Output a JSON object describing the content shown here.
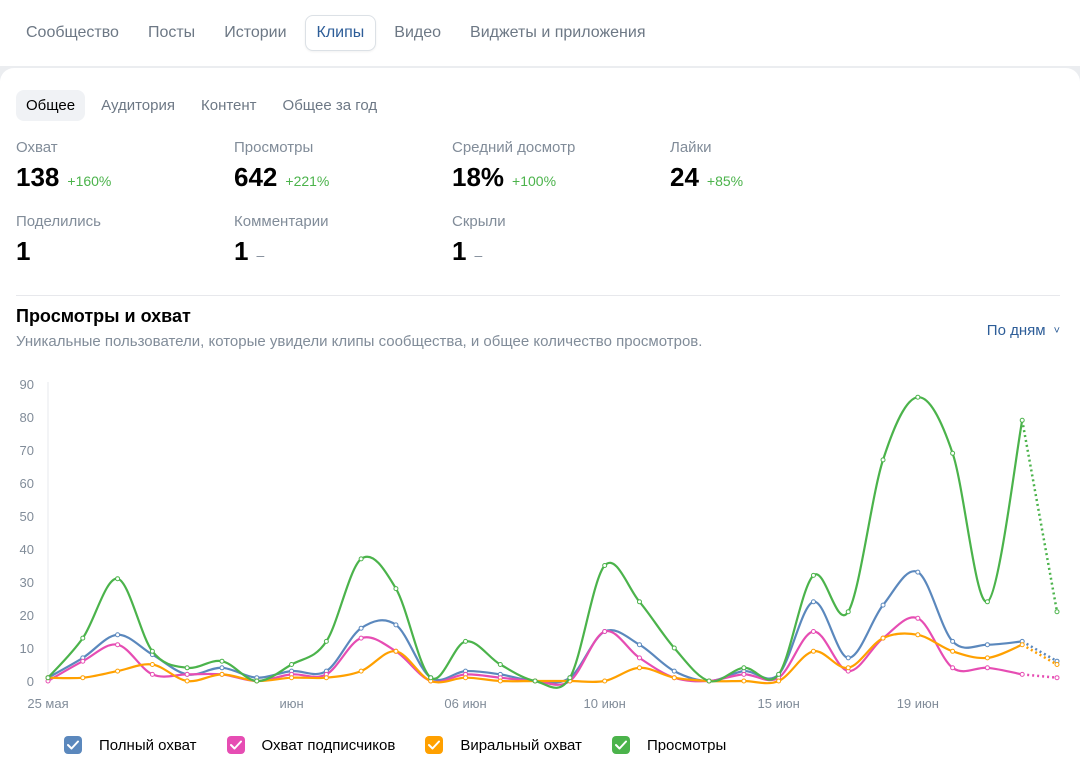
{
  "top_tabs": [
    {
      "label": "Сообщество",
      "active": false
    },
    {
      "label": "Посты",
      "active": false
    },
    {
      "label": "Истории",
      "active": false
    },
    {
      "label": "Клипы",
      "active": true
    },
    {
      "label": "Видео",
      "active": false
    },
    {
      "label": "Виджеты и приложения",
      "active": false
    }
  ],
  "sub_tabs": [
    {
      "label": "Общее",
      "active": true
    },
    {
      "label": "Аудитория",
      "active": false
    },
    {
      "label": "Контент",
      "active": false
    },
    {
      "label": "Общее за год",
      "active": false
    }
  ],
  "metrics": [
    {
      "label": "Охват",
      "value": "138",
      "change": "+160%"
    },
    {
      "label": "Просмотры",
      "value": "642",
      "change": "+221%"
    },
    {
      "label": "Средний досмотр",
      "value": "18%",
      "change": "+100%"
    },
    {
      "label": "Лайки",
      "value": "24",
      "change": "+85%"
    },
    {
      "label": "Поделились",
      "value": "1",
      "change": ""
    },
    {
      "label": "Комментарии",
      "value": "1",
      "change": "–"
    },
    {
      "label": "Скрыли",
      "value": "1",
      "change": "–"
    }
  ],
  "chart_section": {
    "title": "Просмотры и охват",
    "subtitle": "Уникальные пользователи, которые увидели клипы сообщества, и общее количество просмотров.",
    "period_label": "По дням"
  },
  "colors": {
    "full_reach": "#5b88bd",
    "subscriber_reach": "#e64db3",
    "viral_reach": "#ffa000",
    "views": "#4bb34b",
    "accent": "#2d5d98",
    "positive": "#4bb34b"
  },
  "chart_data": {
    "type": "line",
    "x": [
      "25 мая",
      "26 мая",
      "27 мая",
      "28 мая",
      "29 мая",
      "30 мая",
      "31 мая",
      "1 июн",
      "2 июн",
      "3 июн",
      "4 июн",
      "5 июн",
      "6 июн",
      "7 июн",
      "8 июн",
      "9 июн",
      "10 июн",
      "11 июн",
      "12 июн",
      "13 июн",
      "14 июн",
      "15 июн",
      "16 июн",
      "17 июн",
      "18 июн",
      "19 июн",
      "20 июн",
      "21 июн",
      "22 июн",
      "23 июн"
    ],
    "x_tick_labels": [
      {
        "label": "25 мая",
        "x": "25 мая"
      },
      {
        "label": "июн",
        "x": "1 июн"
      },
      {
        "label": "06 июн",
        "x": "6 июн"
      },
      {
        "label": "10 июн",
        "x": "10 июн"
      },
      {
        "label": "15 июн",
        "x": "15 июн"
      },
      {
        "label": "19 июн",
        "x": "19 июн"
      }
    ],
    "ylim": [
      0,
      90
    ],
    "yticks": [
      0,
      10,
      20,
      30,
      40,
      50,
      60,
      70,
      80,
      90
    ],
    "grid": false,
    "legend_position": "bottom-left",
    "dotted_last_segment": true,
    "series": [
      {
        "name": "Полный охват",
        "color_key": "full_reach",
        "values": [
          1,
          7,
          14,
          8,
          2,
          4,
          1,
          3,
          3,
          16,
          17,
          1,
          3,
          2,
          0,
          1,
          15,
          11,
          3,
          0,
          3,
          2,
          24,
          7,
          23,
          33,
          12,
          11,
          12,
          6
        ]
      },
      {
        "name": "Охват подписчиков",
        "color_key": "subscriber_reach",
        "values": [
          0,
          6,
          11,
          2,
          2,
          2,
          0,
          2,
          2,
          13,
          9,
          0,
          2,
          1,
          0,
          0,
          15,
          7,
          1,
          0,
          2,
          1,
          15,
          3,
          13,
          19,
          4,
          4,
          2,
          1
        ]
      },
      {
        "name": "Виральный охват",
        "color_key": "viral_reach",
        "values": [
          1,
          1,
          3,
          5,
          0,
          2,
          0,
          1,
          1,
          3,
          9,
          0,
          1,
          0,
          0,
          0,
          0,
          4,
          1,
          0,
          0,
          0,
          9,
          4,
          13,
          14,
          9,
          7,
          11,
          5
        ]
      },
      {
        "name": "Просмотры",
        "color_key": "views",
        "values": [
          1,
          13,
          31,
          9,
          4,
          6,
          0,
          5,
          12,
          37,
          28,
          1,
          12,
          5,
          0,
          1,
          35,
          24,
          10,
          0,
          4,
          2,
          32,
          21,
          67,
          86,
          69,
          24,
          79,
          21
        ]
      }
    ]
  }
}
